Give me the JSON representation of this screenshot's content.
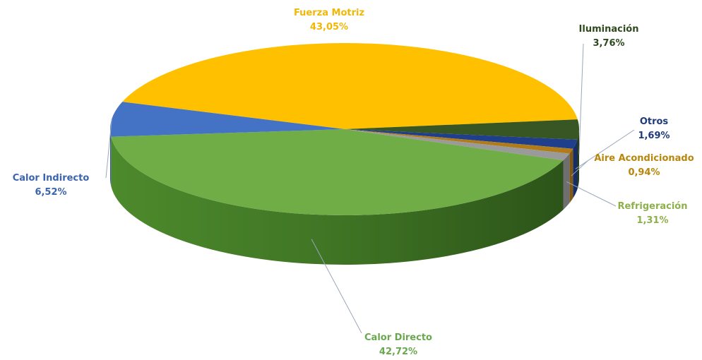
{
  "chart_data": {
    "type": "pie",
    "title": "",
    "unit": "%",
    "slices": [
      {
        "label": "Fuerza Motriz",
        "value": 43.05,
        "value_text": "43,05%",
        "color": "#FFC000",
        "label_color": "#F2B705"
      },
      {
        "label": "Iluminación",
        "value": 3.76,
        "value_text": "3,76%",
        "color": "#375623",
        "label_color": "#2E4A1E"
      },
      {
        "label": "Otros",
        "value": 1.69,
        "value_text": "1,69%",
        "color": "#1F3E8C",
        "label_color": "#1F3A7A"
      },
      {
        "label": "Aire Acondicionado",
        "value": 0.94,
        "value_text": "0,94%",
        "color": "#B07C1A",
        "label_color": "#B8860B"
      },
      {
        "label": "Refrigeración",
        "value": 1.31,
        "value_text": "1,31%",
        "color": "#9A9A9A",
        "label_color": "#8DB04A"
      },
      {
        "label": "Calor Directo",
        "value": 42.72,
        "value_text": "42,72%",
        "color": "#70AD47",
        "label_color": "#6AA84F"
      },
      {
        "label": "Calor Indirecto",
        "value": 6.52,
        "value_text": "6,52%",
        "color": "#4472C4",
        "label_color": "#3B64B0"
      }
    ],
    "legend": "none",
    "style": "3d-pie"
  }
}
